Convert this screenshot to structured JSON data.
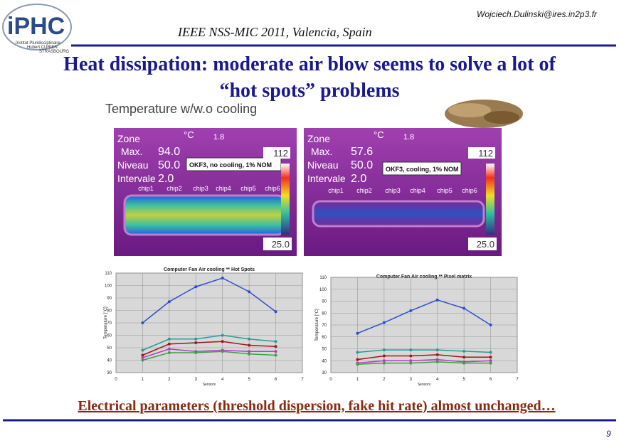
{
  "header": {
    "logo": "iPHC",
    "logo_subtitle": [
      "Institut Pluridisciplinaire",
      "Hubert CURIEN",
      "STRASBOURG"
    ],
    "conference": "IEEE NSS-MIC 2011, Valencia, Spain",
    "email": "Wojciech.Dulinski@ires.in2p3.fr"
  },
  "title": [
    "Heat dissipation: moderate air blow seems to solve a lot of",
    "“hot spots” problems"
  ],
  "section_label": "Temperature w/w.o cooling",
  "thermal_images": [
    {
      "zone": "Zone",
      "unit": "°C",
      "zoom": "1.8",
      "rows": [
        {
          "label": "Max.",
          "value": "94.0"
        },
        {
          "label": "Niveau",
          "value": "50.0"
        },
        {
          "label": "Intervale",
          "value": "2.0"
        }
      ],
      "scale_max": "112",
      "scale_min": "25.0",
      "note": "OKF3, no cooling, 1% NOM",
      "chips": [
        "chip1",
        "chip2",
        "chip3",
        "chip4",
        "chip5",
        "chip6"
      ]
    },
    {
      "zone": "Zone",
      "unit": "°C",
      "zoom": "1.8",
      "rows": [
        {
          "label": "Max.",
          "value": "57.6"
        },
        {
          "label": "Niveau",
          "value": "50.0"
        },
        {
          "label": "Intervale",
          "value": "2.0"
        }
      ],
      "scale_max": "112",
      "scale_min": "25.0",
      "note": "OKF3, cooling, 1% NOM",
      "chips": [
        "chip1",
        "chip2",
        "chip3",
        "chip4",
        "chip5",
        "chip6"
      ]
    }
  ],
  "plots": [
    {
      "title": "Computer Fan Air cooling ** Hot Spots",
      "y_label": "Temperature [°C]",
      "x_label": "Sensors",
      "xlim": [
        0,
        7
      ],
      "ylim": [
        30,
        110
      ],
      "xticks": [
        0,
        1,
        2,
        3,
        4,
        5,
        6,
        7
      ],
      "yticks": [
        30,
        40,
        50,
        60,
        70,
        80,
        90,
        100,
        110
      ],
      "x": [
        1,
        2,
        3,
        4,
        5,
        6
      ],
      "series": [
        {
          "color": "#2a4fd0",
          "values": [
            70,
            87,
            99,
            106,
            95,
            79
          ]
        },
        {
          "color": "#2a9a9a",
          "values": [
            48,
            57,
            57,
            60,
            57,
            55
          ]
        },
        {
          "color": "#a01818",
          "values": [
            44,
            53,
            54,
            55,
            52,
            51
          ]
        },
        {
          "color": "#b040c0",
          "values": [
            42,
            49,
            47,
            48,
            47,
            47
          ]
        },
        {
          "color": "#40a040",
          "values": [
            40,
            46,
            46,
            47,
            45,
            44
          ]
        }
      ]
    },
    {
      "title": "Computer Fan Air cooling ** Pixel matrix",
      "y_label": "Temperature [°C]",
      "x_label": "Sensors",
      "xlim": [
        0,
        7
      ],
      "ylim": [
        30,
        110
      ],
      "xticks": [
        0,
        1,
        2,
        3,
        4,
        5,
        6,
        7
      ],
      "yticks": [
        30,
        40,
        50,
        60,
        70,
        80,
        90,
        100,
        110
      ],
      "x": [
        1,
        2,
        3,
        4,
        5,
        6
      ],
      "series": [
        {
          "color": "#2a4fd0",
          "values": [
            63,
            72,
            82,
            91,
            84,
            70
          ]
        },
        {
          "color": "#2a9a9a",
          "values": [
            47,
            49,
            49,
            49,
            48,
            47
          ]
        },
        {
          "color": "#a01818",
          "values": [
            41,
            44,
            44,
            45,
            43,
            43
          ]
        },
        {
          "color": "#b040c0",
          "values": [
            38,
            40,
            40,
            41,
            39,
            40
          ]
        },
        {
          "color": "#40a040",
          "values": [
            37,
            38,
            38,
            39,
            38,
            38
          ]
        }
      ]
    }
  ],
  "footer": {
    "statement": "Electrical parameters (threshold dispersion, fake hit rate) almost unchanged…",
    "page_number": "9"
  }
}
